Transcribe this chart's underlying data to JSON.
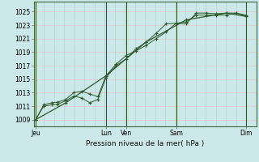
{
  "bg_color": "#cce8e8",
  "grid_color_h": "#e8c8c8",
  "grid_color_v": "#aacccc",
  "day_line_color": "#2d5a2d",
  "line_color": "#2d5a2d",
  "marker_color": "#2d5a2d",
  "xlabel_text": "Pression niveau de la mer( hPa )",
  "ylim": [
    1008.0,
    1026.5
  ],
  "yticks": [
    1009,
    1011,
    1013,
    1015,
    1017,
    1019,
    1021,
    1023,
    1025
  ],
  "day_labels": [
    "Jeu",
    "Lun",
    "Ven",
    "Sam",
    "Dim"
  ],
  "day_positions": [
    0.0,
    3.5,
    4.5,
    7.0,
    10.5
  ],
  "xlim": [
    -0.1,
    11.0
  ],
  "line1_x": [
    0.0,
    0.4,
    0.8,
    1.1,
    1.5,
    1.9,
    2.3,
    2.7,
    3.1,
    3.5,
    4.0,
    4.5,
    5.0,
    5.5,
    6.0,
    6.5,
    7.0,
    7.5,
    8.0,
    8.5,
    9.0,
    9.5,
    10.0,
    10.5
  ],
  "line1_y": [
    1009.0,
    1011.2,
    1011.5,
    1011.6,
    1012.0,
    1013.0,
    1013.2,
    1012.8,
    1012.4,
    1015.5,
    1017.2,
    1018.5,
    1019.2,
    1020.0,
    1021.0,
    1022.0,
    1023.3,
    1023.2,
    1024.8,
    1024.8,
    1024.7,
    1024.8,
    1024.8,
    1024.5
  ],
  "line2_x": [
    0.0,
    0.4,
    0.8,
    1.1,
    1.5,
    1.9,
    2.3,
    2.7,
    3.1,
    3.5,
    4.0,
    4.5,
    5.0,
    5.5,
    6.0,
    6.5,
    7.0,
    7.5,
    8.0,
    8.5,
    9.0,
    9.5,
    10.0,
    10.5
  ],
  "line2_y": [
    1009.0,
    1011.0,
    1011.2,
    1011.3,
    1011.8,
    1012.5,
    1012.2,
    1011.5,
    1012.0,
    1015.2,
    1017.0,
    1018.0,
    1019.5,
    1020.5,
    1021.8,
    1023.2,
    1023.3,
    1023.5,
    1024.5,
    1024.5,
    1024.5,
    1024.5,
    1024.8,
    1024.3
  ],
  "line3_x": [
    0.0,
    1.5,
    3.5,
    5.5,
    7.5,
    9.5,
    10.5
  ],
  "line3_y": [
    1009.0,
    1011.5,
    1015.5,
    1020.5,
    1023.8,
    1024.8,
    1024.3
  ]
}
